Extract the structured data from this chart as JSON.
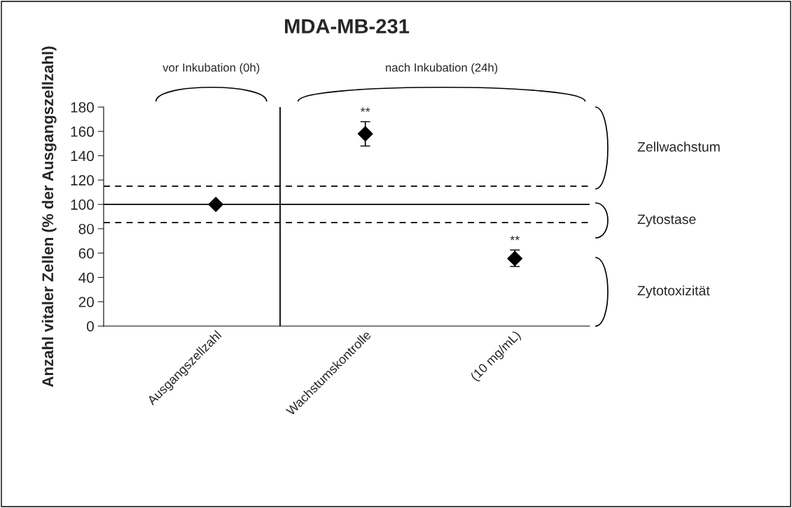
{
  "chart_data": {
    "type": "scatter",
    "title": "MDA-MB-231",
    "ylabel": "Anzahl vitaler Zellen (% der Ausgangszellzahl)",
    "categories": [
      "Ausgangszellzahl",
      "Wachstumskontrolle",
      "(10 mg/mL)"
    ],
    "series": [
      {
        "color": "#000000",
        "values": [
          100,
          158,
          55.5
        ],
        "errors": [
          null,
          10,
          [
            49,
            62.5
          ]
        ]
      }
    ],
    "ylim": [
      0,
      180
    ],
    "yticks": [
      0,
      20,
      40,
      60,
      80,
      100,
      120,
      140,
      160,
      180
    ],
    "marker": "diamond",
    "grid": false,
    "legend": false,
    "ref_lines": [
      {
        "axis": "y",
        "value": 100,
        "line_style": "solid",
        "color": "#000000"
      },
      {
        "axis": "y",
        "value": 115,
        "line_style": "dashed",
        "color": "#000000"
      },
      {
        "axis": "y",
        "value": 85,
        "line_style": "dashed",
        "color": "#000000"
      }
    ],
    "annotations": [
      "vor Inkubation (0h)",
      "nach Inkubation (24h)",
      "Zellwachstum",
      "Zytostase",
      "Zytotoxizität",
      {
        "text": "**",
        "x": "Wachstumskontrolle",
        "y": 168
      },
      {
        "text": "**",
        "x": "(10 mg/mL)",
        "y": 62.5
      }
    ]
  }
}
